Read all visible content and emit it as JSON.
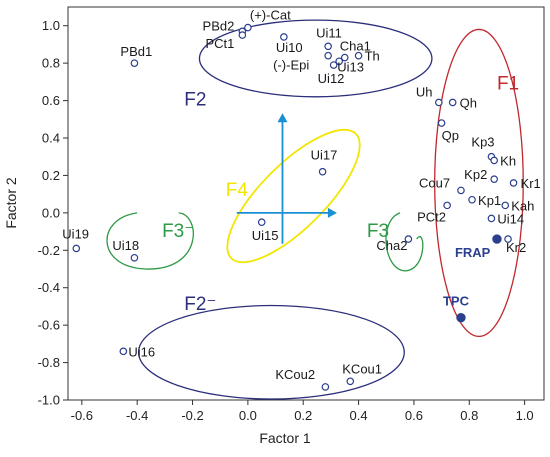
{
  "chart_data": {
    "type": "scatter",
    "xlabel": "Factor 1",
    "ylabel": "Factor 2",
    "xlim": [
      -0.65,
      1.07
    ],
    "ylim": [
      -1.0,
      1.1
    ],
    "x_ticks": [
      -0.6,
      -0.4,
      -0.2,
      0.0,
      0.2,
      0.4,
      0.6,
      0.8,
      1.0
    ],
    "x_tick_labels": [
      "-0.6",
      "-0.4",
      "-0.2",
      "0.0",
      "0.2",
      "0.4",
      "0.6",
      "0.8",
      "1.0"
    ],
    "y_ticks": [
      1.0,
      0.8,
      0.6,
      0.4,
      0.2,
      0.0,
      -0.2,
      -0.4,
      -0.6,
      -0.8,
      -1.0
    ],
    "y_tick_labels": [
      "1.0",
      "0.8",
      "0.6",
      "0.4",
      "0.2",
      "0.0",
      "-0.2",
      "-0.4",
      "-0.6",
      "-0.8",
      "-1.0"
    ],
    "grid": false,
    "colors": {
      "points": "#2b3f8f",
      "F1": "#c0282e",
      "F2": "#2b2f7a",
      "F3": "#2e9a46",
      "F4": "#f2e600",
      "axes_cross": "#1a8fd6"
    },
    "points": [
      {
        "label": "(+)-Cat",
        "x": 0.0,
        "y": 0.99
      },
      {
        "label": "PBd2",
        "x": -0.02,
        "y": 0.97
      },
      {
        "label": "PCt1",
        "x": -0.02,
        "y": 0.95
      },
      {
        "label": "Ui10",
        "x": 0.13,
        "y": 0.94
      },
      {
        "label": "PBd1",
        "x": -0.41,
        "y": 0.8
      },
      {
        "label": "Ui11",
        "x": 0.29,
        "y": 0.89
      },
      {
        "label": "Cha1",
        "x": 0.35,
        "y": 0.83
      },
      {
        "label": "(-)-Epi",
        "x": 0.29,
        "y": 0.84
      },
      {
        "label": "Ui13",
        "x": 0.33,
        "y": 0.81
      },
      {
        "label": "Th",
        "x": 0.4,
        "y": 0.84
      },
      {
        "label": "Ui12",
        "x": 0.31,
        "y": 0.79
      },
      {
        "label": "Uh",
        "x": 0.69,
        "y": 0.59
      },
      {
        "label": "Qh",
        "x": 0.74,
        "y": 0.59
      },
      {
        "label": "Qp",
        "x": 0.7,
        "y": 0.48
      },
      {
        "label": "Kp3",
        "x": 0.88,
        "y": 0.3
      },
      {
        "label": "Kh",
        "x": 0.89,
        "y": 0.28
      },
      {
        "label": "Kp2",
        "x": 0.89,
        "y": 0.18
      },
      {
        "label": "Kr1",
        "x": 0.96,
        "y": 0.16
      },
      {
        "label": "Cou7",
        "x": 0.77,
        "y": 0.12
      },
      {
        "label": "Kp1",
        "x": 0.81,
        "y": 0.07
      },
      {
        "label": "Kah",
        "x": 0.93,
        "y": 0.04
      },
      {
        "label": "PCt2",
        "x": 0.72,
        "y": 0.04
      },
      {
        "label": "Ui14",
        "x": 0.88,
        "y": -0.03
      },
      {
        "label": "Kr2",
        "x": 0.94,
        "y": -0.14
      },
      {
        "label": "Ui17",
        "x": 0.27,
        "y": 0.22
      },
      {
        "label": "Ui15",
        "x": 0.05,
        "y": -0.05
      },
      {
        "label": "Ui19",
        "x": -0.62,
        "y": -0.19
      },
      {
        "label": "Ui18",
        "x": -0.41,
        "y": -0.24
      },
      {
        "label": "Cha2",
        "x": 0.58,
        "y": -0.14
      },
      {
        "label": "Ui16",
        "x": -0.45,
        "y": -0.74
      },
      {
        "label": "KCou2",
        "x": 0.28,
        "y": -0.93
      },
      {
        "label": "KCou1",
        "x": 0.37,
        "y": -0.9
      }
    ],
    "highlight_points": [
      {
        "label": "FRAP",
        "x": 0.9,
        "y": -0.14
      },
      {
        "label": "TPC",
        "x": 0.77,
        "y": -0.56
      }
    ],
    "group_labels": {
      "F1": "F1",
      "F2_pos": "F2",
      "F2_neg": "F2⁻",
      "F3_pos": "F3",
      "F3_neg": "F3⁻",
      "F4": "F4"
    }
  }
}
